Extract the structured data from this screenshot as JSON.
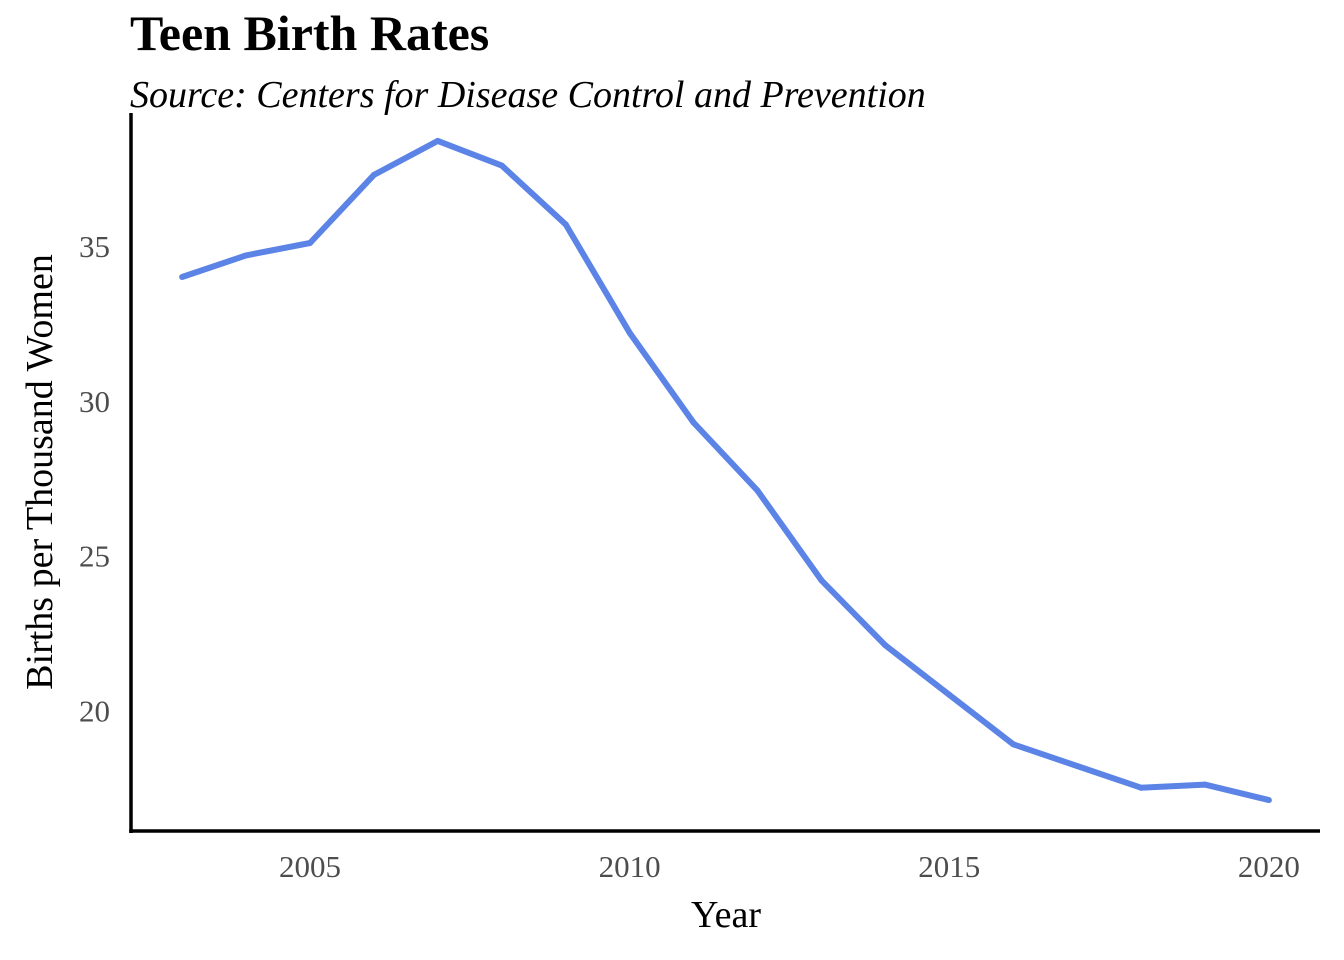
{
  "chart_data": {
    "type": "line",
    "title": "Teen Birth Rates",
    "subtitle": "Source: Centers for Disease Control and Prevention",
    "xlabel": "Year",
    "ylabel": "Births per Thousand Women",
    "xlim": [
      2002.2,
      2020.8
    ],
    "ylim": [
      16.1,
      39.3
    ],
    "x_ticks": [
      2005,
      2010,
      2015,
      2020
    ],
    "y_ticks": [
      20,
      25,
      30,
      35
    ],
    "grid": false,
    "legend": "none",
    "series": [
      {
        "color": "#5b84e6",
        "x": [
          2003,
          2004,
          2005,
          2006,
          2007,
          2008,
          2009,
          2010,
          2011,
          2012,
          2013,
          2014,
          2015,
          2016,
          2017,
          2018,
          2019,
          2020
        ],
        "values": [
          34.0,
          34.7,
          35.1,
          37.3,
          38.4,
          37.6,
          35.7,
          32.2,
          29.3,
          27.1,
          24.2,
          22.1,
          20.5,
          18.9,
          18.2,
          17.5,
          17.6,
          17.1
        ]
      }
    ]
  }
}
